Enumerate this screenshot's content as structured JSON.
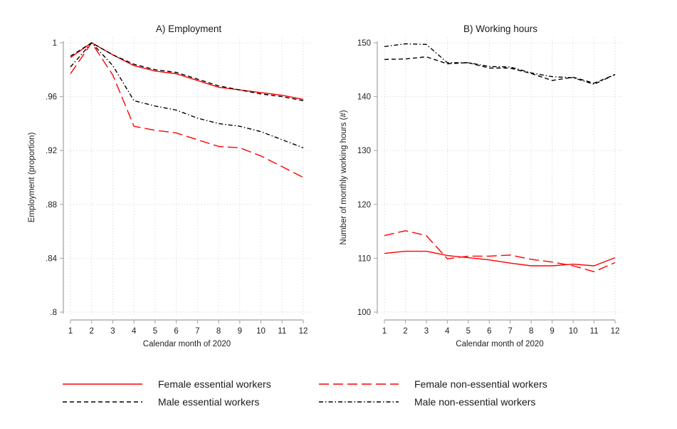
{
  "chart_data": [
    {
      "type": "line",
      "title": "A) Employment",
      "xlabel": "Calendar month of 2020",
      "ylabel": "Employment (proportion)",
      "x": [
        1,
        2,
        3,
        4,
        5,
        6,
        7,
        8,
        9,
        10,
        11,
        12
      ],
      "xticks": [
        "1",
        "2",
        "3",
        "4",
        "5",
        "6",
        "7",
        "8",
        "9",
        "10",
        "11",
        "12"
      ],
      "xlim": [
        1,
        12
      ],
      "ylim": [
        0.8,
        1.0
      ],
      "yticks": [
        0.8,
        0.84,
        0.88,
        0.92,
        0.96,
        1.0
      ],
      "ytick_labels": [
        ".8",
        ".84",
        ".88",
        ".92",
        ".96",
        "1"
      ],
      "grid": true,
      "series": [
        {
          "name": "Female essential workers",
          "key": "fem_ess",
          "values": [
            0.989,
            1.0,
            0.991,
            0.983,
            0.979,
            0.977,
            0.972,
            0.967,
            0.965,
            0.963,
            0.961,
            0.958
          ]
        },
        {
          "name": "Female non-essential workers",
          "key": "fem_non",
          "values": [
            0.977,
            1.0,
            0.976,
            0.938,
            0.935,
            0.933,
            0.928,
            0.923,
            0.922,
            0.916,
            0.908,
            0.9
          ]
        },
        {
          "name": "Male essential workers",
          "key": "male_ess",
          "values": [
            0.99,
            1.0,
            0.991,
            0.984,
            0.98,
            0.978,
            0.973,
            0.968,
            0.965,
            0.962,
            0.96,
            0.957
          ]
        },
        {
          "name": "Male non-essential workers",
          "key": "male_non",
          "values": [
            0.982,
            1.0,
            0.983,
            0.957,
            0.953,
            0.95,
            0.944,
            0.94,
            0.938,
            0.934,
            0.928,
            0.922
          ]
        }
      ]
    },
    {
      "type": "line",
      "title": "B) Working hours",
      "xlabel": "Calendar month of 2020",
      "ylabel": "Number of monthly working hours (#)",
      "x": [
        1,
        2,
        3,
        4,
        5,
        6,
        7,
        8,
        9,
        10,
        11,
        12
      ],
      "xticks": [
        "1",
        "2",
        "3",
        "4",
        "5",
        "6",
        "7",
        "8",
        "9",
        "10",
        "11",
        "12"
      ],
      "xlim": [
        1,
        12
      ],
      "ylim": [
        100,
        150
      ],
      "yticks": [
        100,
        110,
        120,
        130,
        140,
        150
      ],
      "ytick_labels": [
        "100",
        "110",
        "120",
        "130",
        "140",
        "150"
      ],
      "grid": true,
      "series": [
        {
          "name": "Female essential workers",
          "key": "fem_ess",
          "values": [
            110.9,
            111.3,
            111.3,
            110.5,
            110.1,
            109.7,
            109.1,
            108.6,
            108.6,
            108.9,
            108.6,
            110.1
          ]
        },
        {
          "name": "Female non-essential workers",
          "key": "fem_non",
          "values": [
            114.2,
            115.1,
            114.2,
            109.9,
            110.4,
            110.4,
            110.6,
            109.8,
            109.3,
            108.6,
            107.5,
            109.2
          ]
        },
        {
          "name": "Male essential workers",
          "key": "male_ess",
          "values": [
            146.9,
            147.0,
            147.4,
            146.1,
            146.3,
            145.3,
            145.3,
            144.3,
            143.0,
            143.6,
            142.5,
            144.1
          ]
        },
        {
          "name": "Male non-essential workers",
          "key": "male_non",
          "values": [
            149.3,
            149.8,
            149.7,
            146.3,
            146.3,
            145.6,
            145.5,
            144.4,
            143.7,
            143.5,
            142.3,
            144.1
          ]
        }
      ]
    }
  ],
  "legend": {
    "placement": "bottom",
    "entries": [
      {
        "key": "fem_ess",
        "label": "Female essential workers"
      },
      {
        "key": "fem_non",
        "label": "Female non-essential workers"
      },
      {
        "key": "male_ess",
        "label": "Male essential workers"
      },
      {
        "key": "male_non",
        "label": "Male non-essential workers"
      }
    ]
  },
  "styles": {
    "fem_ess": {
      "color": "#ff0000",
      "dash": "solid"
    },
    "fem_non": {
      "color": "#ff0000",
      "dash": "longdash"
    },
    "male_ess": {
      "color": "#000000",
      "dash": "dash"
    },
    "male_non": {
      "color": "#000000",
      "dash": "dashdot"
    }
  },
  "colors": {
    "grid": "#c8c8c8",
    "axis": "#a0a0a0"
  }
}
